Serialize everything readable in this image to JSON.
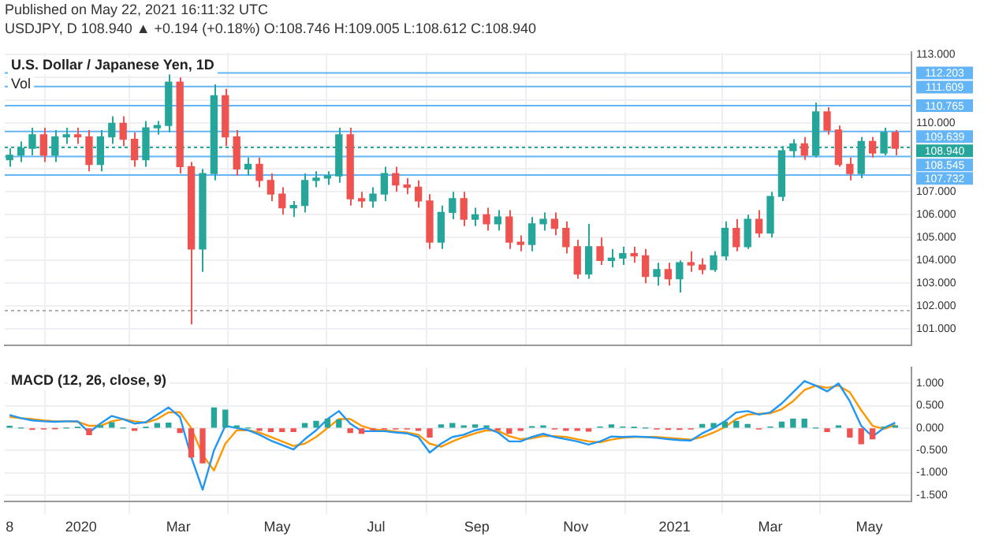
{
  "chart_data": [
    {
      "type": "candlestick",
      "title": "U.S. Dollar / Japanese Yen, 1D",
      "subtitle": "Vol",
      "annotations": [
        "Published on May 22, 2021 16:11:32 UTC",
        "USDJPY, D 108.940 ▲ +0.194 (+0.18%) O:108.746 H:109.005 L:108.612 C:108.940"
      ],
      "x": [
        "2019-11-18",
        "2019-11-25",
        "2019-12-02",
        "2019-12-09",
        "2019-12-16",
        "2019-12-23",
        "2019-12-30",
        "2020-01-06",
        "2020-01-13",
        "2020-01-20",
        "2020-01-27",
        "2020-02-03",
        "2020-02-10",
        "2020-02-17",
        "2020-02-24",
        "2020-03-02",
        "2020-03-09",
        "2020-03-16",
        "2020-03-23",
        "2020-03-30",
        "2020-04-06",
        "2020-04-13",
        "2020-04-20",
        "2020-04-27",
        "2020-05-04",
        "2020-05-11",
        "2020-05-18",
        "2020-05-25",
        "2020-06-01",
        "2020-06-08",
        "2020-06-15",
        "2020-06-22",
        "2020-06-29",
        "2020-07-06",
        "2020-07-13",
        "2020-07-20",
        "2020-07-27",
        "2020-08-03",
        "2020-08-10",
        "2020-08-17",
        "2020-08-24",
        "2020-08-31",
        "2020-09-07",
        "2020-09-14",
        "2020-09-21",
        "2020-09-28",
        "2020-10-05",
        "2020-10-12",
        "2020-10-19",
        "2020-10-26",
        "2020-11-02",
        "2020-11-09",
        "2020-11-16",
        "2020-11-23",
        "2020-11-30",
        "2020-12-07",
        "2020-12-14",
        "2020-12-21",
        "2020-12-28",
        "2021-01-04",
        "2021-01-11",
        "2021-01-18",
        "2021-01-25",
        "2021-02-01",
        "2021-02-08",
        "2021-02-15",
        "2021-02-22",
        "2021-03-01",
        "2021-03-08",
        "2021-03-15",
        "2021-03-22",
        "2021-03-29",
        "2021-04-05",
        "2021-04-12",
        "2021-04-19",
        "2021-04-26",
        "2021-05-03",
        "2021-05-10",
        "2021-05-17"
      ],
      "ohlc": [
        [
          108.4,
          108.9,
          108.1,
          108.6
        ],
        [
          108.6,
          109.2,
          108.3,
          108.9
        ],
        [
          108.9,
          109.8,
          108.6,
          109.5
        ],
        [
          109.5,
          109.8,
          108.3,
          108.6
        ],
        [
          108.6,
          109.7,
          108.3,
          109.4
        ],
        [
          109.4,
          109.8,
          109.1,
          109.5
        ],
        [
          109.5,
          109.8,
          109.1,
          109.4
        ],
        [
          109.4,
          109.7,
          107.9,
          108.2
        ],
        [
          108.2,
          109.7,
          107.9,
          109.4
        ],
        [
          109.4,
          110.3,
          109.1,
          110.0
        ],
        [
          110.0,
          110.3,
          109.0,
          109.3
        ],
        [
          109.3,
          109.6,
          108.1,
          108.4
        ],
        [
          108.4,
          110.1,
          108.1,
          109.8
        ],
        [
          109.8,
          110.1,
          109.5,
          109.9
        ],
        [
          109.9,
          112.2,
          109.6,
          111.8
        ],
        [
          111.8,
          112.0,
          107.8,
          108.1
        ],
        [
          108.1,
          108.3,
          101.2,
          104.5
        ],
        [
          104.5,
          108.0,
          103.5,
          107.8
        ],
        [
          107.8,
          111.7,
          107.5,
          111.2
        ],
        [
          111.2,
          111.5,
          109.0,
          109.4
        ],
        [
          109.4,
          109.7,
          107.7,
          108.0
        ],
        [
          108.0,
          108.5,
          107.7,
          108.2
        ],
        [
          108.2,
          108.5,
          107.2,
          107.5
        ],
        [
          107.5,
          107.8,
          106.6,
          106.9
        ],
        [
          106.9,
          107.2,
          106.0,
          106.3
        ],
        [
          106.3,
          106.6,
          105.9,
          106.4
        ],
        [
          106.4,
          107.8,
          106.1,
          107.5
        ],
        [
          107.5,
          107.9,
          107.2,
          107.6
        ],
        [
          107.6,
          107.9,
          107.3,
          107.7
        ],
        [
          107.7,
          109.8,
          107.4,
          109.5
        ],
        [
          109.5,
          109.8,
          106.4,
          106.7
        ],
        [
          106.7,
          107.0,
          106.3,
          106.6
        ],
        [
          106.6,
          107.2,
          106.3,
          106.9
        ],
        [
          106.9,
          108.1,
          106.6,
          107.8
        ],
        [
          107.8,
          108.1,
          107.0,
          107.3
        ],
        [
          107.3,
          107.6,
          106.9,
          107.2
        ],
        [
          107.2,
          107.5,
          106.3,
          106.6
        ],
        [
          106.6,
          106.9,
          104.5,
          104.8
        ],
        [
          104.8,
          106.4,
          104.5,
          106.1
        ],
        [
          106.1,
          107.0,
          105.8,
          106.7
        ],
        [
          106.7,
          107.0,
          105.5,
          105.8
        ],
        [
          105.8,
          106.3,
          105.5,
          106.0
        ],
        [
          106.0,
          106.3,
          105.3,
          105.6
        ],
        [
          105.6,
          106.2,
          105.3,
          105.9
        ],
        [
          105.9,
          106.2,
          104.5,
          104.8
        ],
        [
          104.8,
          105.1,
          104.4,
          104.7
        ],
        [
          104.7,
          105.9,
          104.4,
          105.6
        ],
        [
          105.6,
          106.1,
          105.3,
          105.8
        ],
        [
          105.8,
          106.1,
          105.1,
          105.4
        ],
        [
          105.4,
          105.7,
          104.3,
          104.6
        ],
        [
          104.6,
          104.9,
          103.2,
          103.4
        ],
        [
          103.4,
          105.6,
          103.2,
          104.6
        ],
        [
          104.6,
          105.0,
          103.8,
          104.0
        ],
        [
          104.0,
          104.5,
          103.7,
          104.1
        ],
        [
          104.1,
          104.6,
          103.8,
          104.3
        ],
        [
          104.3,
          104.6,
          103.9,
          104.2
        ],
        [
          104.2,
          104.5,
          103.0,
          103.3
        ],
        [
          103.3,
          103.9,
          102.9,
          103.6
        ],
        [
          103.6,
          103.9,
          102.9,
          103.2
        ],
        [
          103.2,
          104.0,
          102.6,
          103.9
        ],
        [
          103.9,
          104.4,
          103.5,
          103.8
        ],
        [
          103.8,
          104.1,
          103.4,
          103.6
        ],
        [
          103.6,
          104.4,
          103.5,
          104.2
        ],
        [
          104.2,
          105.7,
          104.0,
          105.4
        ],
        [
          105.4,
          105.8,
          104.4,
          104.6
        ],
        [
          104.6,
          106.0,
          104.5,
          105.8
        ],
        [
          105.8,
          106.2,
          105.0,
          105.2
        ],
        [
          105.2,
          107.0,
          105.0,
          106.8
        ],
        [
          106.8,
          109.0,
          106.6,
          108.8
        ],
        [
          108.8,
          109.3,
          108.5,
          109.1
        ],
        [
          109.1,
          109.4,
          108.4,
          108.6
        ],
        [
          108.6,
          110.9,
          108.5,
          110.5
        ],
        [
          110.5,
          110.7,
          109.5,
          109.7
        ],
        [
          109.7,
          109.9,
          108.1,
          108.2
        ],
        [
          108.2,
          108.5,
          107.5,
          107.8
        ],
        [
          107.8,
          109.4,
          107.6,
          109.2
        ],
        [
          109.2,
          109.4,
          108.5,
          108.7
        ],
        [
          108.7,
          109.8,
          108.6,
          109.6
        ],
        [
          109.6,
          109.7,
          108.6,
          108.9
        ]
      ],
      "colors": [
        "#26a69a",
        "#26a69a",
        "#26a69a",
        "#ef5350",
        "#26a69a",
        "#26a69a",
        "#ef5350",
        "#ef5350",
        "#26a69a",
        "#26a69a",
        "#ef5350",
        "#ef5350",
        "#26a69a",
        "#26a69a",
        "#26a69a",
        "#ef5350",
        "#ef5350",
        "#26a69a",
        "#26a69a",
        "#ef5350",
        "#ef5350",
        "#26a69a",
        "#ef5350",
        "#ef5350",
        "#ef5350",
        "#26a69a",
        "#26a69a",
        "#26a69a",
        "#26a69a",
        "#26a69a",
        "#ef5350",
        "#ef5350",
        "#26a69a",
        "#26a69a",
        "#ef5350",
        "#ef5350",
        "#ef5350",
        "#ef5350",
        "#26a69a",
        "#26a69a",
        "#ef5350",
        "#26a69a",
        "#ef5350",
        "#26a69a",
        "#ef5350",
        "#ef5350",
        "#26a69a",
        "#26a69a",
        "#ef5350",
        "#ef5350",
        "#ef5350",
        "#26a69a",
        "#ef5350",
        "#26a69a",
        "#26a69a",
        "#ef5350",
        "#ef5350",
        "#26a69a",
        "#ef5350",
        "#26a69a",
        "#ef5350",
        "#ef5350",
        "#26a69a",
        "#26a69a",
        "#ef5350",
        "#26a69a",
        "#ef5350",
        "#26a69a",
        "#26a69a",
        "#26a69a",
        "#ef5350",
        "#26a69a",
        "#ef5350",
        "#ef5350",
        "#ef5350",
        "#26a69a",
        "#ef5350",
        "#26a69a",
        "#ef5350"
      ],
      "xlim": [
        "2019-11-15",
        "2021-05-27"
      ],
      "xticks": [
        {
          "value": "2019-11-18",
          "label": null
        },
        {
          "value": "2020-01-01",
          "label": null
        },
        {
          "value": "2020-03-01",
          "label": null
        },
        {
          "value": "2020-05-01",
          "label": null
        },
        {
          "value": "2020-07-01",
          "label": null
        },
        {
          "value": "2020-09-01",
          "label": null
        },
        {
          "value": "2020-11-01",
          "label": null
        },
        {
          "value": "2021-01-01",
          "label": null
        },
        {
          "value": "2021-03-01",
          "label": null
        },
        {
          "value": "2021-05-01",
          "label": null
        }
      ],
      "ylim": [
        100.3,
        113.1
      ],
      "yticks": [
        {
          "value": 101,
          "label": "101.000"
        },
        {
          "value": 102,
          "label": "102.000"
        },
        {
          "value": 103,
          "label": "103.000"
        },
        {
          "value": 104,
          "label": "104.000"
        },
        {
          "value": 105,
          "label": "105.000"
        },
        {
          "value": 106,
          "label": "106.000"
        },
        {
          "value": 107,
          "label": "107.000"
        },
        {
          "value": 108,
          "label": null
        },
        {
          "value": 109,
          "label": null
        },
        {
          "value": 110,
          "label": "110.000"
        },
        {
          "value": 111,
          "label": null
        },
        {
          "value": 112,
          "label": null
        },
        {
          "value": 113,
          "label": "113.000"
        }
      ],
      "ref_lines": [
        {
          "axis": "y",
          "value": 112.203,
          "label": "112.203",
          "color": "#64b5f6"
        },
        {
          "axis": "y",
          "value": 111.609,
          "label": "111.609",
          "color": "#64b5f6"
        },
        {
          "axis": "y",
          "value": 110.765,
          "label": "110.765",
          "color": "#64b5f6"
        },
        {
          "axis": "y",
          "value": 109.639,
          "label": "109.639",
          "color": "#64b5f6"
        },
        {
          "axis": "y",
          "value": 108.94,
          "label": "108.940",
          "color": "#26a69a",
          "line_style": "dotted"
        },
        {
          "axis": "y",
          "value": 108.545,
          "label": "108.545",
          "color": "#64b5f6"
        },
        {
          "axis": "y",
          "value": 107.732,
          "label": "107.732",
          "color": "#64b5f6"
        },
        {
          "axis": "y",
          "value": 101.8,
          "label": null,
          "color": "#b0b0b0",
          "line_style": "dotted"
        }
      ],
      "grid": true,
      "tick_labels": "y"
    },
    {
      "type": "line",
      "title": "MACD (12, 26, close, 9)",
      "x": [
        "2019-11-18",
        "2019-11-25",
        "2019-12-02",
        "2019-12-09",
        "2019-12-16",
        "2019-12-23",
        "2019-12-30",
        "2020-01-06",
        "2020-01-13",
        "2020-01-20",
        "2020-01-27",
        "2020-02-03",
        "2020-02-10",
        "2020-02-17",
        "2020-02-24",
        "2020-03-02",
        "2020-03-09",
        "2020-03-16",
        "2020-03-23",
        "2020-03-30",
        "2020-04-06",
        "2020-04-13",
        "2020-04-20",
        "2020-04-27",
        "2020-05-04",
        "2020-05-11",
        "2020-05-18",
        "2020-05-25",
        "2020-06-01",
        "2020-06-08",
        "2020-06-15",
        "2020-06-22",
        "2020-06-29",
        "2020-07-06",
        "2020-07-13",
        "2020-07-20",
        "2020-07-27",
        "2020-08-03",
        "2020-08-10",
        "2020-08-17",
        "2020-08-24",
        "2020-08-31",
        "2020-09-07",
        "2020-09-14",
        "2020-09-21",
        "2020-09-28",
        "2020-10-05",
        "2020-10-12",
        "2020-10-19",
        "2020-10-26",
        "2020-11-02",
        "2020-11-09",
        "2020-11-16",
        "2020-11-23",
        "2020-11-30",
        "2020-12-07",
        "2020-12-14",
        "2020-12-21",
        "2020-12-28",
        "2021-01-04",
        "2021-01-11",
        "2021-01-18",
        "2021-01-25",
        "2021-02-01",
        "2021-02-08",
        "2021-02-15",
        "2021-02-22",
        "2021-03-01",
        "2021-03-08",
        "2021-03-15",
        "2021-03-22",
        "2021-03-29",
        "2021-04-05",
        "2021-04-12",
        "2021-04-19",
        "2021-04-26",
        "2021-05-03",
        "2021-05-10",
        "2021-05-17"
      ],
      "series": [
        {
          "type": "bar",
          "colors": [
            "#26a69a",
            "#26a69a",
            "#ef5350",
            "#ef5350",
            "#ef5350",
            "#26a69a",
            "#26a69a",
            "#ef5350",
            "#26a69a",
            "#26a69a",
            "#26a69a",
            "#ef5350",
            "#26a69a",
            "#26a69a",
            "#26a69a",
            "#ef5350",
            "#ef5350",
            "#ef5350",
            "#26a69a",
            "#26a69a",
            "#26a69a",
            "#26a69a",
            "#ef5350",
            "#ef5350",
            "#ef5350",
            "#ef5350",
            "#26a69a",
            "#26a69a",
            "#26a69a",
            "#26a69a",
            "#ef5350",
            "#ef5350",
            "#ef5350",
            "#ef5350",
            "#ef5350",
            "#ef5350",
            "#ef5350",
            "#ef5350",
            "#26a69a",
            "#26a69a",
            "#26a69a",
            "#26a69a",
            "#26a69a",
            "#ef5350",
            "#ef5350",
            "#ef5350",
            "#26a69a",
            "#26a69a",
            "#ef5350",
            "#ef5350",
            "#ef5350",
            "#ef5350",
            "#26a69a",
            "#26a69a",
            "#26a69a",
            "#26a69a",
            "#26a69a",
            "#ef5350",
            "#ef5350",
            "#ef5350",
            "#ef5350",
            "#26a69a",
            "#26a69a",
            "#26a69a",
            "#26a69a",
            "#26a69a",
            "#ef5350",
            "#26a69a",
            "#26a69a",
            "#26a69a",
            "#26a69a",
            "#26a69a",
            "#ef5350",
            "#26a69a",
            "#ef5350",
            "#ef5350",
            "#ef5350",
            "#26a69a",
            "#26a69a"
          ],
          "values": [
            0.04,
            0,
            -0.03,
            -0.02,
            -0.01,
            0,
            0.01,
            -0.15,
            0.05,
            0.12,
            0,
            -0.05,
            0.01,
            0.1,
            0.11,
            -0.1,
            -0.65,
            -0.78,
            0.45,
            0.4,
            0.05,
            0,
            -0.05,
            -0.08,
            -0.08,
            -0.08,
            0.1,
            0.15,
            0.2,
            0.18,
            -0.1,
            -0.12,
            -0.04,
            -0.02,
            -0.02,
            -0.02,
            -0.05,
            -0.2,
            0.07,
            0.1,
            0.05,
            0.07,
            0.05,
            -0.04,
            -0.12,
            -0.05,
            0.03,
            0.05,
            -0.02,
            -0.05,
            -0.05,
            -0.07,
            0.02,
            0.07,
            0.02,
            0.01,
            0,
            -0.02,
            -0.03,
            -0.03,
            -0.02,
            0.08,
            0.1,
            0.13,
            0.15,
            0.08,
            -0.02,
            0.02,
            0.13,
            0.2,
            0.2,
            0,
            -0.08,
            0.05,
            -0.2,
            -0.35,
            -0.24,
            0.02,
            0.05
          ]
        },
        {
          "color": "#2196f3",
          "values": [
            0.29,
            0.22,
            0.17,
            0.15,
            0.14,
            0.15,
            0.15,
            -0.1,
            0.1,
            0.27,
            0.2,
            0.1,
            0.13,
            0.3,
            0.46,
            0.25,
            -0.65,
            -1.38,
            -0.5,
            0.05,
            0,
            -0.05,
            -0.15,
            -0.28,
            -0.38,
            -0.48,
            -0.25,
            -0.05,
            0.2,
            0.38,
            0.1,
            -0.07,
            -0.07,
            -0.07,
            -0.1,
            -0.12,
            -0.2,
            -0.55,
            -0.35,
            -0.2,
            -0.15,
            -0.05,
            0,
            -0.1,
            -0.3,
            -0.3,
            -0.2,
            -0.13,
            -0.2,
            -0.25,
            -0.3,
            -0.37,
            -0.3,
            -0.19,
            -0.2,
            -0.19,
            -0.2,
            -0.22,
            -0.25,
            -0.27,
            -0.28,
            -0.12,
            0,
            0.15,
            0.35,
            0.38,
            0.3,
            0.35,
            0.55,
            0.8,
            1.05,
            0.95,
            0.82,
            1.0,
            0.6,
            0.05,
            -0.19,
            0,
            0.12
          ]
        },
        {
          "color": "#ff9800",
          "values": [
            0.25,
            0.22,
            0.2,
            0.17,
            0.15,
            0.15,
            0.14,
            0.05,
            0.05,
            0.15,
            0.2,
            0.15,
            0.12,
            0.2,
            0.35,
            0.35,
            0,
            -0.6,
            -0.95,
            -0.35,
            -0.05,
            -0.05,
            -0.1,
            -0.2,
            -0.3,
            -0.4,
            -0.35,
            -0.2,
            0,
            0.2,
            0.2,
            0.05,
            -0.03,
            -0.05,
            -0.08,
            -0.1,
            -0.15,
            -0.35,
            -0.42,
            -0.3,
            -0.2,
            -0.12,
            -0.05,
            -0.06,
            -0.18,
            -0.25,
            -0.23,
            -0.18,
            -0.18,
            -0.2,
            -0.25,
            -0.3,
            -0.32,
            -0.26,
            -0.22,
            -0.2,
            -0.2,
            -0.2,
            -0.22,
            -0.24,
            -0.26,
            -0.2,
            -0.1,
            0.02,
            0.2,
            0.3,
            0.32,
            0.33,
            0.42,
            0.6,
            0.85,
            0.95,
            0.9,
            0.95,
            0.8,
            0.4,
            0.05,
            -0.02,
            0.07
          ]
        }
      ],
      "xlim": [
        "2019-11-15",
        "2021-05-27"
      ],
      "xticks": [
        {
          "value": "2019-11-18",
          "label": "8"
        },
        {
          "value": "2020-01-01",
          "label": "2020"
        },
        {
          "value": "2020-03-01",
          "label": "Mar"
        },
        {
          "value": "2020-05-01",
          "label": "May"
        },
        {
          "value": "2020-07-01",
          "label": "Jul"
        },
        {
          "value": "2020-09-01",
          "label": "Sep"
        },
        {
          "value": "2020-11-01",
          "label": "Nov"
        },
        {
          "value": "2021-01-01",
          "label": "2021"
        },
        {
          "value": "2021-03-01",
          "label": "Mar"
        },
        {
          "value": "2021-05-01",
          "label": "May"
        }
      ],
      "ylim": [
        -1.65,
        1.35
      ],
      "yticks": [
        {
          "value": -1.5,
          "label": "-1.500"
        },
        {
          "value": -1,
          "label": "-1.000"
        },
        {
          "value": -0.5,
          "label": "-0.500"
        },
        {
          "value": 0,
          "label": "0.000"
        },
        {
          "value": 0.5,
          "label": "0.500"
        },
        {
          "value": 1,
          "label": "1.000"
        }
      ],
      "grid": true
    }
  ]
}
